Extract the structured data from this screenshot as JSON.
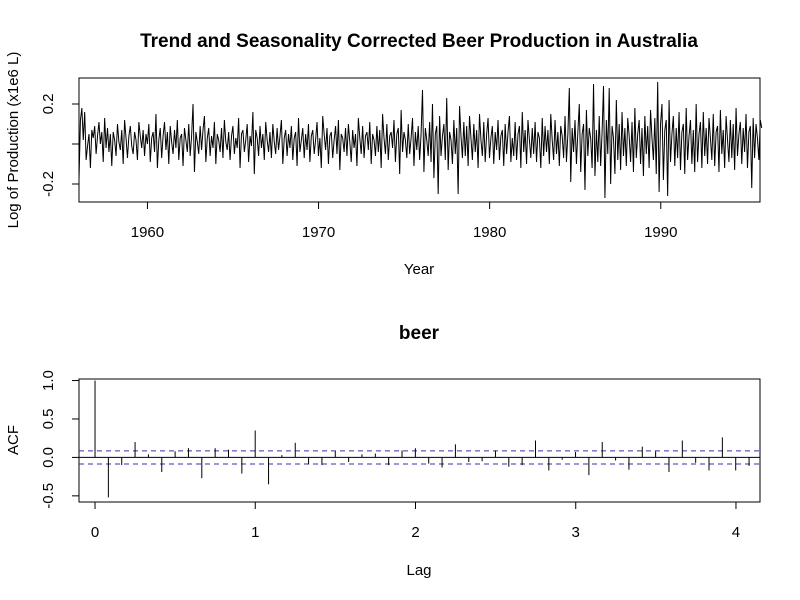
{
  "chart_data": [
    {
      "type": "line",
      "title": "Trend and Seasonality Corrected Beer Production in Australia",
      "xlabel": "Year",
      "ylabel": "Log of Production (x1e6 L)",
      "xlim": [
        1956.0,
        1995.8
      ],
      "ylim": [
        -0.29,
        0.33
      ],
      "x_ticks": [
        1960,
        1970,
        1980,
        1990
      ],
      "x_tick_labels": [
        "1960",
        "1970",
        "1980",
        "1990"
      ],
      "y_ticks": [
        -0.2,
        0.0,
        0.2
      ],
      "y_tick_labels": [
        "-0.2",
        "",
        "0.2"
      ],
      "x_start": 1956.0,
      "x_step": 0.0833,
      "series": [
        {
          "values": [
            -0.18,
            0.12,
            0.18,
            0.02,
            0.16,
            -0.08,
            -0.01,
            0.05,
            -0.12,
            0.07,
            0.03,
            0.09,
            -0.05,
            0.04,
            0.11,
            0.0,
            0.06,
            -0.09,
            0.13,
            -0.02,
            0.08,
            -0.04,
            0.05,
            -0.11,
            0.06,
            0.02,
            -0.06,
            0.1,
            0.01,
            -0.03,
            0.07,
            -0.1,
            0.12,
            0.03,
            -0.07,
            0.04,
            0.09,
            -0.01,
            -0.05,
            0.06,
            0.02,
            -0.08,
            0.11,
            0.04,
            -0.02,
            0.07,
            -0.06,
            0.05,
            0.0,
            0.1,
            -0.09,
            0.03,
            0.06,
            -0.04,
            0.15,
            -0.12,
            0.02,
            0.08,
            -0.07,
            0.04,
            0.11,
            -0.03,
            0.06,
            -0.1,
            0.09,
            0.01,
            -0.05,
            0.07,
            -0.02,
            0.12,
            -0.08,
            0.03,
            0.05,
            -0.11,
            0.08,
            0.02,
            -0.04,
            0.1,
            -0.06,
            0.04,
            0.2,
            -0.14,
            0.06,
            0.01,
            -0.05,
            0.09,
            -0.03,
            0.07,
            0.14,
            -0.09,
            0.03,
            0.08,
            -0.06,
            0.04,
            -0.02,
            0.11,
            -0.1,
            0.05,
            0.02,
            -0.04,
            0.08,
            -0.07,
            0.12,
            0.01,
            -0.03,
            0.06,
            -0.08,
            0.04,
            0.09,
            -0.05,
            0.03,
            -0.02,
            0.13,
            -0.12,
            0.05,
            0.07,
            -0.04,
            0.02,
            0.1,
            -0.09,
            0.04,
            -0.01,
            0.16,
            -0.15,
            0.07,
            0.03,
            -0.06,
            0.09,
            -0.02,
            0.05,
            -0.08,
            0.11,
            0.02,
            -0.04,
            0.06,
            -0.07,
            0.1,
            0.01,
            -0.05,
            0.08,
            -0.03,
            0.04,
            0.12,
            -0.1,
            0.03,
            0.07,
            -0.06,
            0.05,
            -0.02,
            0.09,
            -0.08,
            0.03,
            0.06,
            -0.11,
            0.13,
            -0.04,
            0.02,
            0.08,
            -0.07,
            0.05,
            -0.03,
            0.1,
            -0.09,
            0.04,
            0.07,
            -0.05,
            0.02,
            0.11,
            -0.06,
            0.03,
            -0.12,
            0.14,
            0.05,
            -0.03,
            0.08,
            -0.1,
            0.04,
            0.06,
            -0.07,
            0.02,
            0.09,
            -0.05,
            0.12,
            -0.13,
            0.05,
            0.03,
            -0.04,
            0.08,
            -0.06,
            0.1,
            0.01,
            -0.09,
            0.07,
            -0.02,
            0.05,
            -0.11,
            0.13,
            0.03,
            -0.05,
            0.09,
            -0.07,
            0.04,
            0.06,
            -0.03,
            0.11,
            -0.1,
            0.05,
            0.02,
            -0.06,
            0.09,
            -0.04,
            0.07,
            -0.12,
            0.15,
            0.03,
            -0.05,
            0.1,
            -0.08,
            0.04,
            0.06,
            -0.02,
            0.12,
            -0.09,
            0.05,
            0.08,
            -0.15,
            0.17,
            -0.04,
            0.06,
            0.02,
            -0.07,
            0.1,
            -0.05,
            0.03,
            0.13,
            -0.11,
            0.06,
            -0.03,
            0.09,
            -0.08,
            0.05,
            0.27,
            -0.14,
            0.08,
            0.02,
            -0.06,
            0.11,
            -0.09,
            0.2,
            -0.17,
            0.05,
            0.09,
            -0.25,
            0.14,
            -0.06,
            0.04,
            0.1,
            -0.08,
            0.23,
            -0.13,
            0.06,
            0.02,
            -0.1,
            0.12,
            -0.05,
            0.08,
            -0.25,
            0.19,
            0.04,
            -0.07,
            0.11,
            -0.06,
            0.09,
            -0.11,
            0.14,
            0.03,
            -0.08,
            0.1,
            -0.04,
            0.07,
            -0.12,
            0.15,
            0.02,
            -0.06,
            0.11,
            -0.09,
            0.05,
            0.13,
            -0.07,
            0.03,
            0.09,
            -0.1,
            0.06,
            -0.03,
            0.12,
            -0.08,
            0.04,
            0.07,
            -0.11,
            0.1,
            -0.05,
            0.06,
            0.14,
            -0.09,
            0.03,
            -0.06,
            0.11,
            -0.08,
            0.05,
            0.09,
            -0.12,
            0.16,
            -0.04,
            0.07,
            -0.1,
            0.12,
            0.02,
            -0.07,
            0.08,
            -0.05,
            0.11,
            -0.09,
            0.06,
            0.03,
            -0.12,
            0.13,
            -0.06,
            0.09,
            -0.04,
            0.07,
            -0.1,
            0.15,
            0.02,
            -0.08,
            0.12,
            -0.05,
            0.06,
            -0.11,
            0.09,
            0.04,
            -0.07,
            0.14,
            -0.09,
            0.05,
            0.28,
            -0.19,
            0.08,
            -0.04,
            0.12,
            -0.1,
            0.06,
            0.2,
            -0.14,
            0.05,
            0.1,
            -0.23,
            0.17,
            -0.06,
            0.08,
            0.03,
            -0.12,
            0.3,
            -0.16,
            0.07,
            -0.09,
            0.14,
            -0.11,
            0.06,
            0.29,
            -0.27,
            0.12,
            -0.05,
            0.28,
            -0.2,
            0.09,
            0.03,
            -0.15,
            0.22,
            -0.08,
            0.1,
            -0.13,
            0.16,
            -0.06,
            0.08,
            -0.11,
            0.13,
            0.04,
            -0.09,
            0.11,
            -0.14,
            0.18,
            -0.07,
            0.05,
            0.12,
            -0.1,
            0.08,
            -0.16,
            0.14,
            -0.05,
            0.09,
            -0.12,
            0.17,
            0.03,
            -0.08,
            0.13,
            -0.15,
            0.31,
            -0.24,
            0.1,
            0.2,
            -0.18,
            0.07,
            0.12,
            -0.26,
            0.22,
            -0.09,
            0.05,
            0.14,
            -0.11,
            0.08,
            -0.07,
            0.16,
            -0.13,
            0.06,
            0.1,
            -0.15,
            0.18,
            -0.08,
            0.04,
            0.12,
            -0.1,
            0.07,
            -0.14,
            0.2,
            -0.09,
            0.05,
            0.11,
            -0.12,
            0.16,
            -0.06,
            0.08,
            -0.1,
            0.13,
            0.03,
            -0.08,
            0.15,
            -0.11,
            0.06,
            0.09,
            -0.14,
            0.17,
            -0.05,
            0.07,
            -0.12,
            0.14,
            0.02,
            -0.09,
            0.12,
            -0.07,
            0.1,
            -0.13,
            0.18,
            -0.06,
            0.05,
            0.11,
            -0.1,
            0.08,
            -0.04,
            0.15,
            -0.12,
            0.06,
            0.09,
            -0.22,
            0.13,
            -0.07,
            0.1,
            0.03,
            -0.08,
            0.12,
            0.08
          ]
        }
      ],
      "grid": false,
      "legend": "none"
    },
    {
      "type": "bar",
      "title": "beer",
      "xlabel": "Lag",
      "ylabel": "ACF",
      "xlim": [
        -0.1,
        4.15
      ],
      "ylim": [
        -0.58,
        1.02
      ],
      "x_ticks": [
        0,
        1,
        2,
        3,
        4
      ],
      "x_tick_labels": [
        "0",
        "1",
        "2",
        "3",
        "4"
      ],
      "y_ticks": [
        -0.5,
        0.0,
        0.5,
        1.0
      ],
      "y_tick_labels": [
        "-0.5",
        "0.0",
        "0.5",
        "1.0"
      ],
      "lag_step": 0.0833,
      "values": [
        1.0,
        -0.52,
        -0.1,
        0.2,
        0.04,
        -0.19,
        0.08,
        0.12,
        -0.27,
        0.12,
        0.1,
        -0.21,
        0.35,
        -0.35,
        0.03,
        0.19,
        -0.09,
        -0.1,
        0.08,
        -0.06,
        0.04,
        0.05,
        -0.1,
        0.09,
        0.12,
        -0.08,
        -0.13,
        0.17,
        -0.06,
        -0.05,
        0.09,
        -0.12,
        -0.1,
        0.22,
        -0.17,
        -0.03,
        0.07,
        -0.23,
        0.2,
        -0.04,
        -0.16,
        0.14,
        0.08,
        -0.19,
        0.22,
        -0.07,
        -0.17,
        0.26,
        -0.17,
        -0.11
      ],
      "confidence_bound": 0.085,
      "confidence_color": "#3333aa",
      "grid": false,
      "legend": "none"
    }
  ]
}
